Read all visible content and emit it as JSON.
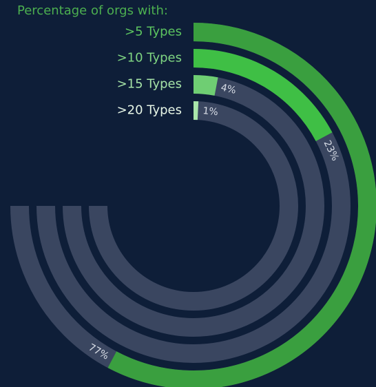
{
  "chart_data": {
    "type": "radialBar",
    "title": "Percentage of orgs with:",
    "categories": [
      ">5 Types",
      ">10 Types",
      ">15 Types",
      ">20 Types"
    ],
    "values": [
      77,
      23,
      4,
      1
    ],
    "value_labels": [
      "77%",
      "23%",
      "4%",
      "1%"
    ],
    "colors": [
      "#3a9f3f",
      "#3fbf45",
      "#6fce73",
      "#a9e6aa"
    ],
    "label_colors": [
      "#5cc460",
      "#7fd582",
      "#a5e2a7",
      "#e6f5e6"
    ],
    "track_color": "#3a4660",
    "ylim": [
      0,
      100
    ]
  }
}
